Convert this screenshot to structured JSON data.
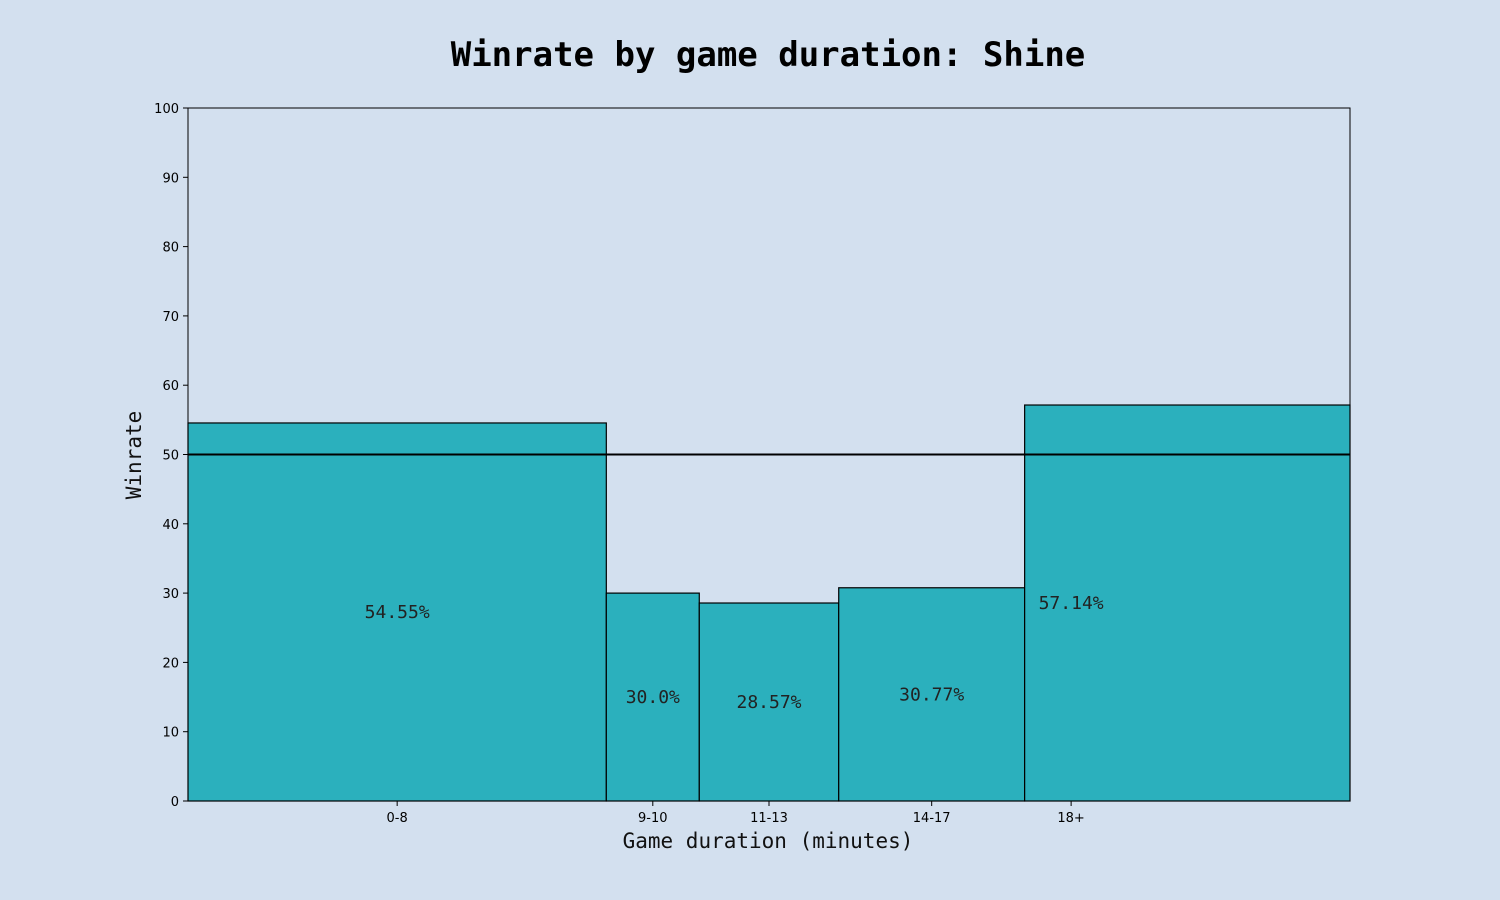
{
  "chart_data": {
    "type": "bar",
    "title": "Winrate by game duration: Shine",
    "xlabel": "Game duration (minutes)",
    "ylabel": "Winrate",
    "ylim": [
      0,
      100
    ],
    "yticks": [
      0,
      10,
      20,
      30,
      40,
      50,
      60,
      70,
      80,
      90,
      100
    ],
    "categories": [
      "0-8",
      "9-10",
      "11-13",
      "14-17",
      "18+"
    ],
    "values": [
      54.55,
      30.0,
      28.57,
      30.77,
      57.14
    ],
    "data_labels": [
      "54.55%",
      "30.0%",
      "28.57%",
      "30.77%",
      "57.14%"
    ],
    "bar_bins": [
      [
        0,
        9
      ],
      [
        9,
        11
      ],
      [
        11,
        14
      ],
      [
        14,
        18
      ],
      [
        18,
        25
      ]
    ],
    "tick_positions": [
      4.5,
      10,
      12.5,
      16,
      19
    ],
    "x_range": [
      0,
      25
    ],
    "reference_line": 50,
    "grid": false,
    "legend": "none",
    "bar_color": "#2bb0bd",
    "edge_color": "#000000",
    "background_color": "#d3e0ef",
    "plot_background": "#d3e0ef"
  }
}
